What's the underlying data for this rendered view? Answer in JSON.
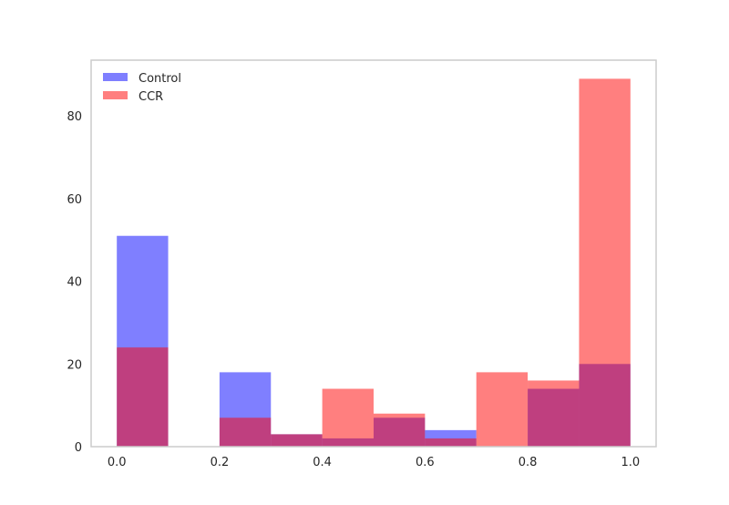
{
  "chart_data": {
    "type": "bar",
    "subtype": "overlaid-histogram",
    "title": "",
    "xlabel": "",
    "ylabel": "",
    "xlim": [
      -0.05,
      1.05
    ],
    "ylim": [
      0,
      93.5
    ],
    "grid": false,
    "legend_position": "top-left",
    "bin_edges": [
      0.0,
      0.1,
      0.2,
      0.3,
      0.4,
      0.5,
      0.6,
      0.7,
      0.8,
      0.9,
      1.0
    ],
    "x_ticks": [
      {
        "value": 0.0,
        "label": "0.0"
      },
      {
        "value": 0.2,
        "label": "0.2"
      },
      {
        "value": 0.4,
        "label": "0.4"
      },
      {
        "value": 0.6,
        "label": "0.6"
      },
      {
        "value": 0.8,
        "label": "0.8"
      },
      {
        "value": 1.0,
        "label": "1.0"
      }
    ],
    "y_ticks": [
      {
        "value": 0,
        "label": "0"
      },
      {
        "value": 20,
        "label": "20"
      },
      {
        "value": 40,
        "label": "40"
      },
      {
        "value": 60,
        "label": "60"
      },
      {
        "value": 80,
        "label": "80"
      }
    ],
    "series": [
      {
        "name": "Control",
        "color": "#0000ff",
        "opacity": 0.5,
        "values": [
          51,
          0,
          18,
          3,
          2,
          7,
          4,
          0,
          14,
          20
        ]
      },
      {
        "name": "CCR",
        "color": "#ff0000",
        "opacity": 0.5,
        "values": [
          24,
          0,
          7,
          3,
          14,
          8,
          2,
          18,
          16,
          89
        ]
      }
    ]
  }
}
